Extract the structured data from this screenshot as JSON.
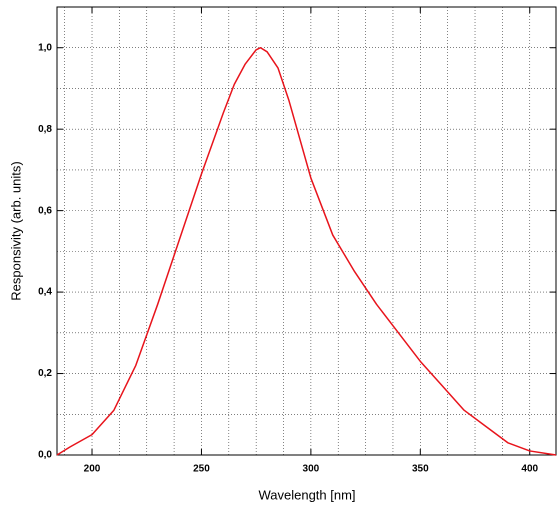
{
  "chart_data": {
    "type": "line",
    "x_label": "Wavelength [nm]",
    "y_label": "Responsivity (arb. units)",
    "x": [
      184,
      190,
      200,
      210,
      220,
      230,
      240,
      250,
      260,
      265,
      270,
      275,
      277,
      280,
      285,
      290,
      300,
      310,
      320,
      330,
      340,
      350,
      360,
      370,
      380,
      390,
      400,
      412
    ],
    "values": [
      0.0,
      0.02,
      0.05,
      0.11,
      0.22,
      0.37,
      0.53,
      0.69,
      0.84,
      0.91,
      0.96,
      0.995,
      1.0,
      0.99,
      0.95,
      0.87,
      0.68,
      0.54,
      0.45,
      0.37,
      0.3,
      0.23,
      0.17,
      0.11,
      0.07,
      0.03,
      0.01,
      0.0
    ],
    "color": "#e8141c",
    "xlim": [
      184,
      412
    ],
    "ylim": [
      0,
      1.1
    ],
    "xticks": [
      200,
      250,
      300,
      350,
      400
    ],
    "yticks": [
      {
        "value": 0,
        "label": "0,0"
      },
      {
        "value": 0.2,
        "label": "0,2"
      },
      {
        "value": 0.4,
        "label": "0,4"
      },
      {
        "value": 0.6,
        "label": "0,6"
      },
      {
        "value": 0.8,
        "label": "0,8"
      },
      {
        "value": 1.0,
        "label": "1,0"
      }
    ],
    "grid": true
  }
}
